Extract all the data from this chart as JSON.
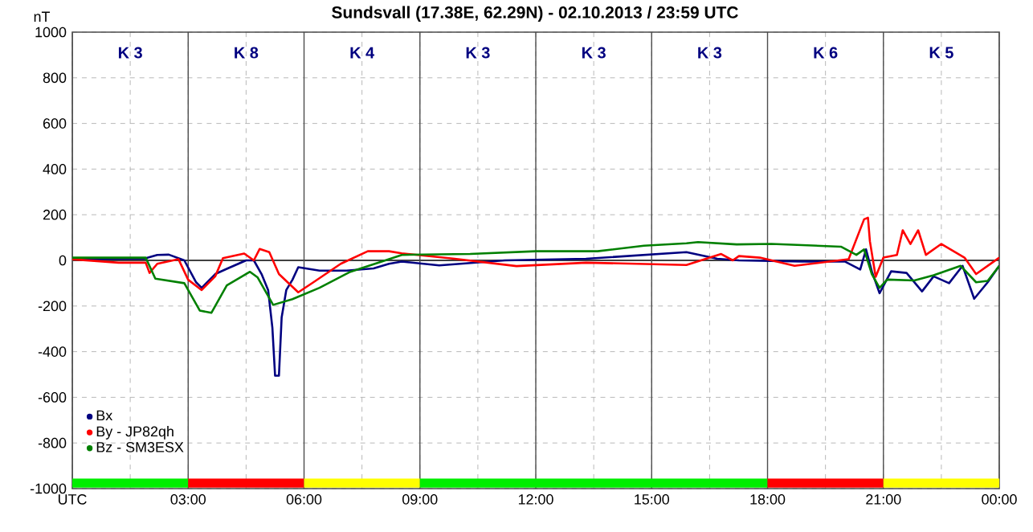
{
  "chart_data": {
    "type": "line",
    "title": "Sundsvall (17.38E, 62.29N) - 02.10.2013 / 23:59  UTC",
    "ylabel": "nT",
    "xlim": [
      0,
      24
    ],
    "ylim": [
      -1000,
      1000
    ],
    "xticks": [
      {
        "value": 0,
        "label": "UTC"
      },
      {
        "value": 3,
        "label": "03:00"
      },
      {
        "value": 6,
        "label": "06:00"
      },
      {
        "value": 9,
        "label": "09:00"
      },
      {
        "value": 12,
        "label": "12:00"
      },
      {
        "value": 15,
        "label": "15:00"
      },
      {
        "value": 18,
        "label": "18:00"
      },
      {
        "value": 21,
        "label": "21:00"
      },
      {
        "value": 24,
        "label": "00:00"
      }
    ],
    "yticks": [
      -1000,
      -800,
      -600,
      -400,
      -200,
      0,
      200,
      400,
      600,
      800,
      1000
    ],
    "grid": true,
    "legend": "bottom left",
    "marker": "none",
    "line_style": "solid",
    "series": [
      {
        "name": "Bx",
        "color": "#000080",
        "x": [
          0,
          1.87,
          2.2,
          2.5,
          2.9,
          3.2,
          3.35,
          3.7,
          4.0,
          4.5,
          4.7,
          4.9,
          5.07,
          5.18,
          5.25,
          5.35,
          5.42,
          5.54,
          5.7,
          5.85,
          6.4,
          7.1,
          7.8,
          8.2,
          8.53,
          9.5,
          11.2,
          13.3,
          15.9,
          16.7,
          17.26,
          18.9,
          20.0,
          20.4,
          20.55,
          20.7,
          20.9,
          21.2,
          21.6,
          22.0,
          22.3,
          22.7,
          23.05,
          23.35,
          23.7,
          24
        ],
        "values": [
          5,
          8,
          24,
          25,
          0,
          -95,
          -120,
          -60,
          -37,
          0,
          0,
          -60,
          -130,
          -295,
          -505,
          -505,
          -250,
          -130,
          -85,
          -30,
          -45,
          -45,
          -35,
          -15,
          -5,
          -22,
          0,
          7,
          36,
          7,
          0,
          -5,
          -5,
          -40,
          48,
          -48,
          -144,
          -48,
          -55,
          -136,
          -70,
          -100,
          -24,
          -168,
          -96,
          -24
        ]
      },
      {
        "name": "By  -  JP82qh",
        "color": "#ff0000",
        "x": [
          0,
          1.2,
          1.9,
          2.0,
          2.2,
          2.75,
          3.0,
          3.35,
          3.7,
          3.9,
          4.45,
          4.7,
          4.85,
          5.1,
          5.35,
          5.85,
          6.25,
          6.95,
          7.65,
          8.2,
          8.53,
          9.9,
          11.5,
          13.3,
          15.9,
          16.8,
          17.1,
          17.26,
          17.8,
          18.7,
          20.1,
          20.5,
          20.6,
          20.65,
          20.8,
          21.0,
          21.35,
          21.5,
          21.7,
          21.9,
          22.1,
          22.5,
          23.1,
          23.4,
          23.8,
          24
        ],
        "values": [
          5,
          -10,
          -10,
          -55,
          -15,
          5,
          -85,
          -130,
          -70,
          10,
          30,
          0,
          50,
          36,
          -60,
          -140,
          -95,
          -15,
          40,
          40,
          31,
          7,
          -25,
          -10,
          -20,
          28,
          0,
          19,
          12,
          -24,
          5,
          180,
          187,
          84,
          -72,
          12,
          24,
          132,
          72,
          132,
          24,
          72,
          12,
          -60,
          -12,
          12
        ]
      },
      {
        "name": "Bz  -  SM3ESX",
        "color": "#008000",
        "x": [
          0,
          1.9,
          2.15,
          2.9,
          3.3,
          3.6,
          4.0,
          4.6,
          4.8,
          5.2,
          5.7,
          6.4,
          7.2,
          8.2,
          8.53,
          10.3,
          12.0,
          13.6,
          14.8,
          15.9,
          16.2,
          17.2,
          18.1,
          19.9,
          20.3,
          20.5,
          20.7,
          20.9,
          21.1,
          21.8,
          22.3,
          23.0,
          23.4,
          23.7,
          24
        ],
        "values": [
          12,
          12,
          -80,
          -100,
          -220,
          -230,
          -110,
          -50,
          -75,
          -195,
          -170,
          -120,
          -50,
          5,
          24,
          28,
          40,
          40,
          64,
          75,
          80,
          70,
          72,
          60,
          24,
          48,
          -60,
          -120,
          -84,
          -88,
          -65,
          -24,
          -96,
          -90,
          -24
        ]
      }
    ],
    "ref_lines": [
      {
        "axis": "y",
        "value": 0,
        "color": "#404040"
      }
    ],
    "annotations": [
      "K 3",
      "K 8",
      "K 4",
      "K 3",
      "K 3",
      "K 3",
      "K 6",
      "K 5"
    ]
  }
}
